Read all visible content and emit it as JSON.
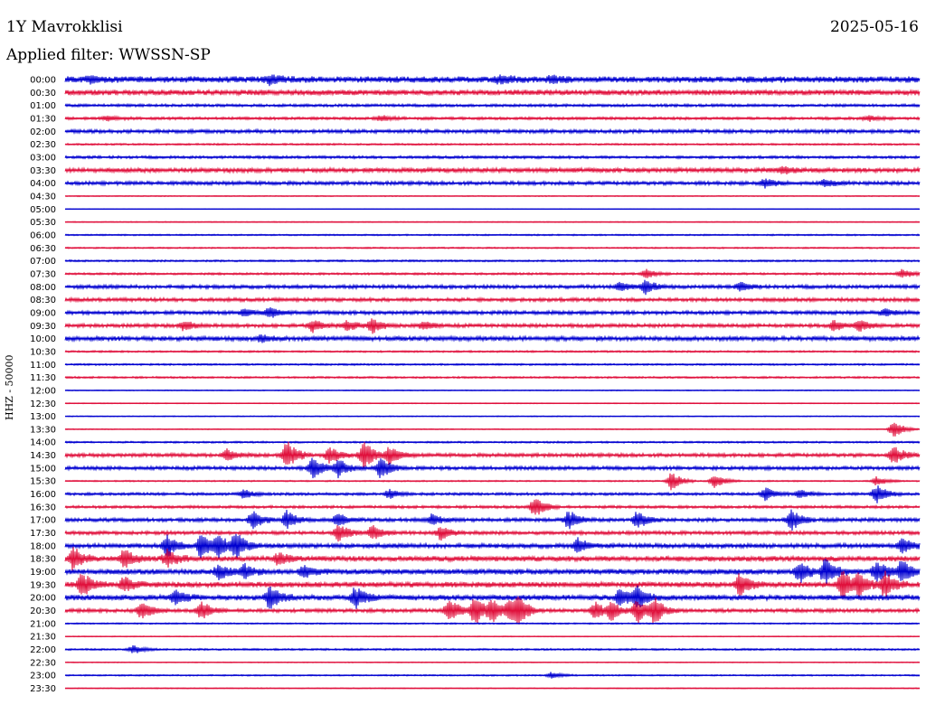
{
  "header": {
    "station": "1Y Mavrokklisi",
    "date": "2025-05-16",
    "filter": "Applied filter: WWSSN-SP",
    "channel": "HHZ - 50000"
  },
  "colors": {
    "odd": "#0000d0",
    "even": "#e0103c"
  },
  "chart_data": {
    "type": "line",
    "title": "1Y Mavrokklisi",
    "ylabel": "HHZ - 50000",
    "tick_labels": [
      "00:00",
      "00:30",
      "01:00",
      "01:30",
      "02:00",
      "02:30",
      "03:00",
      "03:30",
      "04:00",
      "04:30",
      "05:00",
      "05:30",
      "06:00",
      "06:30",
      "07:00",
      "07:30",
      "08:00",
      "08:30",
      "09:00",
      "09:30",
      "10:00",
      "10:30",
      "11:00",
      "11:30",
      "12:00",
      "12:30",
      "13:00",
      "13:30",
      "14:00",
      "14:30",
      "15:00",
      "15:30",
      "16:00",
      "16:30",
      "17:00",
      "17:30",
      "18:00",
      "18:30",
      "19:00",
      "19:30",
      "20:00",
      "20:30",
      "21:00",
      "21:30",
      "22:00",
      "22:30",
      "23:00",
      "23:30"
    ],
    "noise_levels": [
      3.5,
      3.0,
      1.5,
      1.5,
      2.0,
      1.0,
      1.5,
      2.5,
      2.0,
      0.5,
      0.3,
      0.5,
      0.8,
      0.8,
      1.0,
      1.2,
      2.0,
      2.0,
      2.0,
      2.0,
      2.5,
      1.0,
      1.0,
      1.0,
      0.5,
      0.5,
      0.5,
      0.5,
      1.0,
      2.0,
      2.0,
      0.8,
      1.5,
      1.5,
      2.0,
      2.0,
      2.5,
      3.0,
      3.0,
      3.0,
      3.0,
      2.0,
      0.8,
      0.5,
      1.0,
      0.5,
      0.8,
      0.5
    ],
    "events": [
      {
        "trace": 0,
        "t": [
          0.03,
          0.24,
          0.51,
          0.57
        ],
        "amp": [
          3,
          5,
          4,
          3
        ]
      },
      {
        "trace": 3,
        "t": [
          0.05,
          0.37,
          0.94
        ],
        "amp": [
          3,
          3,
          3
        ]
      },
      {
        "trace": 7,
        "t": [
          0.84
        ],
        "amp": [
          4
        ]
      },
      {
        "trace": 8,
        "t": [
          0.82,
          0.89
        ],
        "amp": [
          5,
          4
        ]
      },
      {
        "trace": 15,
        "t": [
          0.68,
          0.98
        ],
        "amp": [
          5,
          5
        ]
      },
      {
        "trace": 16,
        "t": [
          0.65,
          0.68,
          0.79
        ],
        "amp": [
          5,
          8,
          5
        ]
      },
      {
        "trace": 18,
        "t": [
          0.21,
          0.24,
          0.96
        ],
        "amp": [
          4,
          6,
          4
        ]
      },
      {
        "trace": 19,
        "t": [
          0.14,
          0.29,
          0.33,
          0.36,
          0.42,
          0.9,
          0.93
        ],
        "amp": [
          6,
          7,
          6,
          8,
          5,
          6,
          6
        ]
      },
      {
        "trace": 20,
        "t": [
          0.23
        ],
        "amp": [
          4
        ]
      },
      {
        "trace": 27,
        "t": [
          0.97
        ],
        "amp": [
          10
        ]
      },
      {
        "trace": 29,
        "t": [
          0.19,
          0.26,
          0.31,
          0.35,
          0.38,
          0.97
        ],
        "amp": [
          6,
          16,
          10,
          16,
          10,
          10
        ]
      },
      {
        "trace": 30,
        "t": [
          0.29,
          0.32,
          0.37
        ],
        "amp": [
          12,
          10,
          12
        ]
      },
      {
        "trace": 31,
        "t": [
          0.71,
          0.76,
          0.95
        ],
        "amp": [
          10,
          8,
          5
        ]
      },
      {
        "trace": 32,
        "t": [
          0.21,
          0.38,
          0.82,
          0.86,
          0.95
        ],
        "amp": [
          5,
          5,
          7,
          5,
          10
        ]
      },
      {
        "trace": 33,
        "t": [
          0.55
        ],
        "amp": [
          12
        ]
      },
      {
        "trace": 34,
        "t": [
          0.22,
          0.26,
          0.32,
          0.43,
          0.59,
          0.67,
          0.85
        ],
        "amp": [
          10,
          10,
          8,
          6,
          10,
          10,
          12
        ]
      },
      {
        "trace": 35,
        "t": [
          0.32,
          0.36,
          0.44
        ],
        "amp": [
          10,
          8,
          8
        ]
      },
      {
        "trace": 36,
        "t": [
          0.12,
          0.16,
          0.18,
          0.2,
          0.6,
          0.98
        ],
        "amp": [
          12,
          14,
          12,
          14,
          8,
          8
        ]
      },
      {
        "trace": 37,
        "t": [
          0.01,
          0.07,
          0.12,
          0.25
        ],
        "amp": [
          12,
          10,
          10,
          6
        ]
      },
      {
        "trace": 38,
        "t": [
          0.18,
          0.21,
          0.28,
          0.86,
          0.89,
          0.95,
          0.98
        ],
        "amp": [
          8,
          8,
          6,
          12,
          14,
          12,
          12
        ]
      },
      {
        "trace": 39,
        "t": [
          0.02,
          0.07,
          0.79,
          0.91,
          0.93,
          0.96
        ],
        "amp": [
          14,
          8,
          12,
          16,
          12,
          14
        ]
      },
      {
        "trace": 40,
        "t": [
          0.13,
          0.24,
          0.34,
          0.65,
          0.67
        ],
        "amp": [
          8,
          12,
          12,
          10,
          12
        ]
      },
      {
        "trace": 41,
        "t": [
          0.09,
          0.16,
          0.45,
          0.48,
          0.5,
          0.52,
          0.53,
          0.62,
          0.64,
          0.67,
          0.69
        ],
        "amp": [
          10,
          10,
          14,
          16,
          12,
          10,
          16,
          10,
          10,
          14,
          14
        ]
      },
      {
        "trace": 44,
        "t": [
          0.08
        ],
        "amp": [
          5
        ]
      },
      {
        "trace": 46,
        "t": [
          0.57
        ],
        "amp": [
          4
        ]
      }
    ]
  }
}
